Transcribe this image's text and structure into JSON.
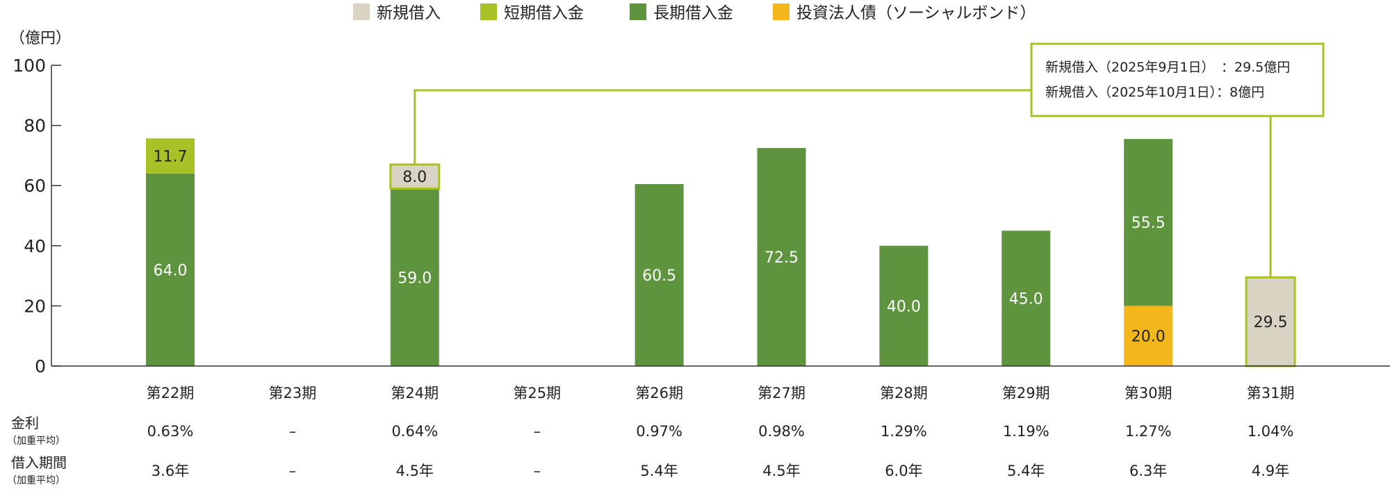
{
  "chart_data": {
    "type": "bar",
    "unit_label": "（億円）",
    "ylim": [
      0,
      100
    ],
    "yticks": [
      0,
      20,
      40,
      60,
      80,
      100
    ],
    "legend": {
      "placement": "top",
      "items": [
        {
          "name": "新規借入",
          "color": "#d8d3c2"
        },
        {
          "name": "短期借入金",
          "color": "#a8c126"
        },
        {
          "name": "長期借入金",
          "color": "#5e943d"
        },
        {
          "name": "投資法人債（ソーシャルボンド）",
          "color": "#f2b71a"
        }
      ]
    },
    "categories": [
      "第22期",
      "第23期",
      "第24期",
      "第25期",
      "第26期",
      "第27期",
      "第28期",
      "第29期",
      "第30期",
      "第31期"
    ],
    "series": [
      {
        "name": "投資法人債（ソーシャルボンド）",
        "color": "#f2b71a",
        "values": [
          0,
          0,
          0,
          0,
          0,
          0,
          0,
          0,
          20.0,
          0
        ],
        "labels": [
          "",
          "",
          "",
          "",
          "",
          "",
          "",
          "",
          "20.0",
          ""
        ],
        "label_color": "#222222"
      },
      {
        "name": "長期借入金",
        "color": "#5e943d",
        "values": [
          64.0,
          0,
          59.0,
          0,
          60.5,
          72.5,
          40.0,
          45.0,
          55.5,
          0
        ],
        "labels": [
          "64.0",
          "",
          "59.0",
          "",
          "60.5",
          "72.5",
          "40.0",
          "45.0",
          "55.5",
          ""
        ],
        "label_color": "#ffffff"
      },
      {
        "name": "短期借入金",
        "color": "#a8c126",
        "values": [
          11.7,
          0,
          0,
          0,
          0,
          0,
          0,
          0,
          0,
          0
        ],
        "labels": [
          "11.7",
          "",
          "",
          "",
          "",
          "",
          "",
          "",
          "",
          ""
        ],
        "label_color": "#222222"
      },
      {
        "name": "新規借入",
        "color": "#d8d3c2",
        "values": [
          0,
          0,
          8.0,
          0,
          0,
          0,
          0,
          0,
          0,
          29.5
        ],
        "labels": [
          "",
          "",
          "8.0",
          "",
          "",
          "",
          "",
          "",
          "",
          "29.5"
        ],
        "label_color": "#222222",
        "outlined": true
      }
    ],
    "annotation": {
      "lines": [
        "新規借入（2025年9月1日）　：29.5億円",
        "新規借入（2025年10月1日）：8億円"
      ],
      "border_color": "#a8c126"
    },
    "table": {
      "rows": [
        {
          "label": "金利",
          "sublabel": "（加重平均）",
          "values": [
            "0.63%",
            "–",
            "0.64%",
            "–",
            "0.97%",
            "0.98%",
            "1.29%",
            "1.19%",
            "1.27%",
            "1.04%"
          ]
        },
        {
          "label": "借入期間",
          "sublabel": "（加重平均）",
          "values": [
            "3.6年",
            "–",
            "4.5年",
            "–",
            "5.4年",
            "4.5年",
            "6.0年",
            "5.4年",
            "6.3年",
            "4.9年"
          ]
        }
      ]
    }
  }
}
